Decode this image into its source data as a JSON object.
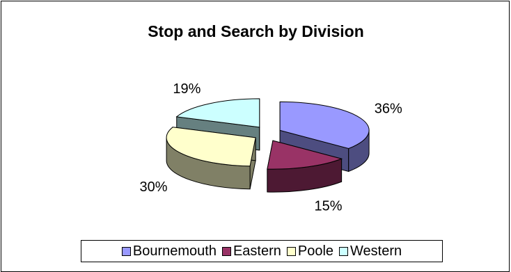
{
  "chart_data": {
    "type": "pie",
    "title": "Stop and Search by Division",
    "categories": [
      "Bournemouth",
      "Eastern",
      "Poole",
      "Western"
    ],
    "values": [
      36,
      15,
      30,
      19
    ],
    "value_labels": [
      "36%",
      "15%",
      "30%",
      "19%"
    ],
    "colors": [
      "#9999FF",
      "#993366",
      "#FFFFCC",
      "#CCFFFF"
    ],
    "side_colors": [
      "#4D4D80",
      "#4D1933",
      "#808066",
      "#668080"
    ],
    "exploded": true,
    "three_d": true,
    "legend_position": "bottom"
  }
}
